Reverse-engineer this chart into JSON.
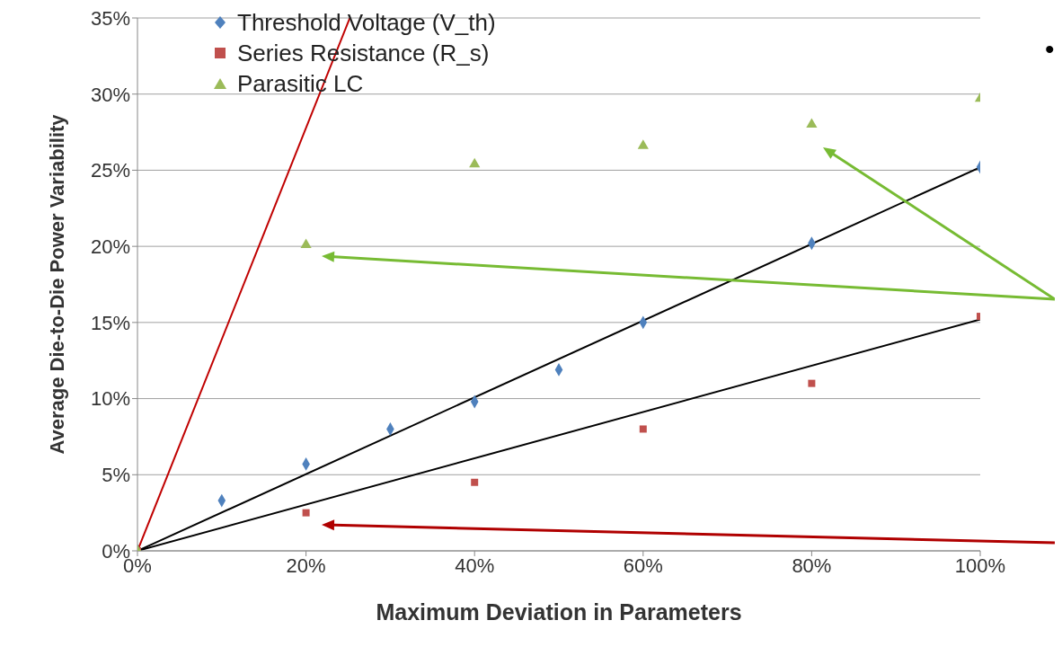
{
  "chart_data": {
    "type": "scatter",
    "xlabel": "Maximum Deviation in Parameters",
    "ylabel": "Average  Die-to-Die Power Variability",
    "xlim": [
      0,
      100
    ],
    "ylim": [
      0,
      35
    ],
    "xticks": [
      {
        "value": 0,
        "label": "0%"
      },
      {
        "value": 20,
        "label": "20%"
      },
      {
        "value": 40,
        "label": "40%"
      },
      {
        "value": 60,
        "label": "60%"
      },
      {
        "value": 80,
        "label": "80%"
      },
      {
        "value": 100,
        "label": "100%"
      }
    ],
    "yticks": [
      {
        "value": 0,
        "label": "0%"
      },
      {
        "value": 5,
        "label": "5%"
      },
      {
        "value": 10,
        "label": "10%"
      },
      {
        "value": 15,
        "label": "15%"
      },
      {
        "value": 20,
        "label": "20%"
      },
      {
        "value": 25,
        "label": "25%"
      },
      {
        "value": 30,
        "label": "30%"
      },
      {
        "value": 35,
        "label": "35%"
      }
    ],
    "grid": "y",
    "legend": "top left",
    "annotations": [
      "•"
    ],
    "series": [
      {
        "name": "Threshold Voltage (V_th)",
        "color": "#4f81bd",
        "marker": "diamond",
        "x": [
          0,
          10,
          20,
          30,
          40,
          50,
          60,
          80,
          100
        ],
        "values": [
          0,
          3.3,
          5.7,
          8.0,
          9.8,
          11.9,
          15.0,
          20.2,
          25.2
        ]
      },
      {
        "name": "Series Resistance (R_s)",
        "color": "#c0504d",
        "marker": "square",
        "x": [
          0,
          20,
          40,
          60,
          80,
          100
        ],
        "values": [
          0,
          2.5,
          4.5,
          8.0,
          11.0,
          15.4
        ]
      },
      {
        "name": "Parasitic LC",
        "color": "#9bbb59",
        "marker": "triangle",
        "x": [
          0,
          20,
          40,
          60,
          80,
          100
        ],
        "values": [
          0,
          20.1,
          25.4,
          26.6,
          28.0,
          29.7
        ]
      },
      {
        "type": "line",
        "color": "#000000",
        "x": [
          0,
          100
        ],
        "values": [
          0,
          25.2
        ]
      },
      {
        "type": "line",
        "color": "#000000",
        "x": [
          0,
          100
        ],
        "values": [
          0,
          15.2
        ]
      },
      {
        "type": "line",
        "color": "#c00000",
        "x": [
          0,
          25.2
        ],
        "values": [
          0,
          35
        ]
      }
    ]
  }
}
